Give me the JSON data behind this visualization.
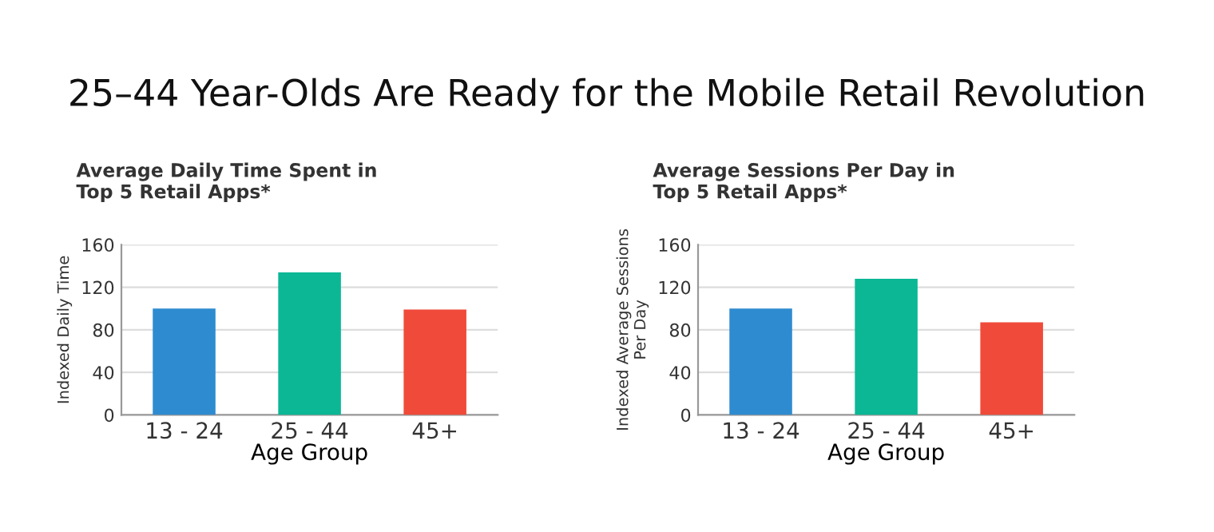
{
  "chart_data": [
    {
      "type": "bar",
      "title": "25–44 Year-Olds Are Ready for the Mobile Retail Revolution",
      "subtitle": "Average Daily Time Spent in\nTop 5 Retail Apps*",
      "xlabel": "Age Group",
      "ylabel": "Indexed Daily Time",
      "categories": [
        "13 - 24",
        "25 - 44",
        "45+"
      ],
      "values": [
        100,
        134,
        99
      ],
      "colors": [
        "#2e8bd0",
        "#0bb795",
        "#f04a3a"
      ],
      "ylim": [
        0,
        160
      ],
      "yticks": [
        0,
        40,
        80,
        120,
        160
      ],
      "grid": "y",
      "legend": false
    },
    {
      "type": "bar",
      "subtitle": "Average Sessions Per Day in\nTop 5 Retail Apps*",
      "xlabel": "Age Group",
      "ylabel": "Indexed Average Sessions\nPer Day",
      "categories": [
        "13 - 24",
        "25 - 44",
        "45+"
      ],
      "values": [
        100,
        128,
        87
      ],
      "colors": [
        "#2e8bd0",
        "#0bb795",
        "#f04a3a"
      ],
      "ylim": [
        0,
        160
      ],
      "yticks": [
        0,
        40,
        80,
        120,
        160
      ],
      "grid": "y",
      "legend": false
    }
  ]
}
